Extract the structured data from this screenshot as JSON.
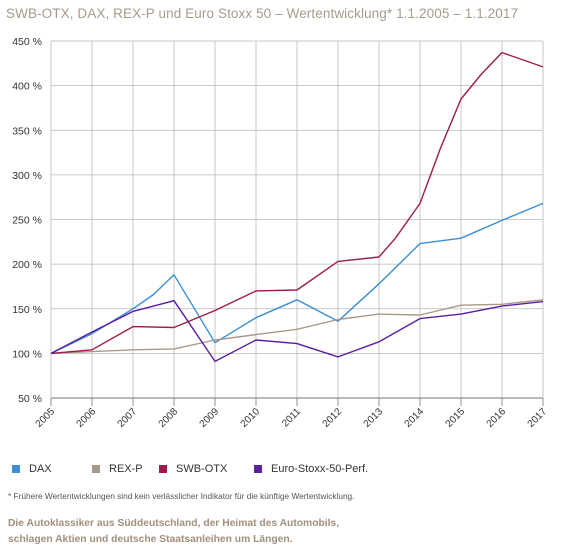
{
  "title": "SWB-OTX, DAX, REX-P und Euro Stoxx 50 – Wertentwicklung* 1.1.2005 – 1.1.2017",
  "footnote": "* Frühere Wertentwicklungen sind kein verlässlicher Indikator für die künftige Wertentwicklung.",
  "tagline": [
    "Die Autoklassiker aus Süddeutschland, der Heimat des Automobils,",
    "schlagen Aktien und deutsche Staatsanleihen um Längen."
  ],
  "chart_data": {
    "type": "line",
    "x": [
      "2005",
      "2006",
      "2007",
      "2008",
      "2009",
      "2010",
      "2011",
      "2012",
      "2013",
      "2014",
      "2015",
      "2016",
      "2017"
    ],
    "ylim": [
      50,
      450
    ],
    "yticks": [
      50,
      100,
      150,
      200,
      250,
      300,
      350,
      400,
      450
    ],
    "ytick_labels": [
      "50 %",
      "100 %",
      "150 %",
      "200 %",
      "250 %",
      "300 %",
      "350 %",
      "400 %",
      "450 %"
    ],
    "grid": true,
    "legend_position": "bottom",
    "series": [
      {
        "name": "DAX",
        "color": "#3b8fd4",
        "x": [
          0,
          1,
          2,
          2.5,
          3,
          4,
          5,
          6,
          7,
          8,
          9,
          10,
          11,
          12
        ],
        "values": [
          100,
          122,
          150,
          166,
          188,
          112,
          140,
          160,
          136,
          178,
          223,
          229,
          249,
          268
        ]
      },
      {
        "name": "REX-P",
        "color": "#a89a8a",
        "x": [
          0,
          1,
          2,
          3,
          4,
          5,
          6,
          7,
          8,
          9,
          10,
          11,
          12
        ],
        "values": [
          100,
          102,
          104,
          105,
          115,
          121,
          127,
          138,
          144,
          143,
          154,
          155,
          160
        ]
      },
      {
        "name": "SWB-OTX",
        "color": "#9e1b4e",
        "x": [
          0,
          1,
          2,
          3,
          4,
          5,
          6,
          7,
          8,
          8.4,
          9,
          9.5,
          10,
          10.5,
          11,
          12
        ],
        "values": [
          100,
          104,
          130,
          129,
          148,
          170,
          171,
          203,
          208,
          229,
          268,
          330,
          385,
          413,
          437,
          421
        ]
      },
      {
        "name": "Euro-Stoxx-50-Perf.",
        "color": "#5a1fa0",
        "x": [
          0,
          1,
          2,
          3,
          4,
          5,
          6,
          7,
          8,
          9,
          10,
          11,
          12
        ],
        "values": [
          100,
          124,
          147,
          159,
          91,
          115,
          111,
          96,
          113,
          139,
          144,
          153,
          158
        ]
      }
    ]
  }
}
